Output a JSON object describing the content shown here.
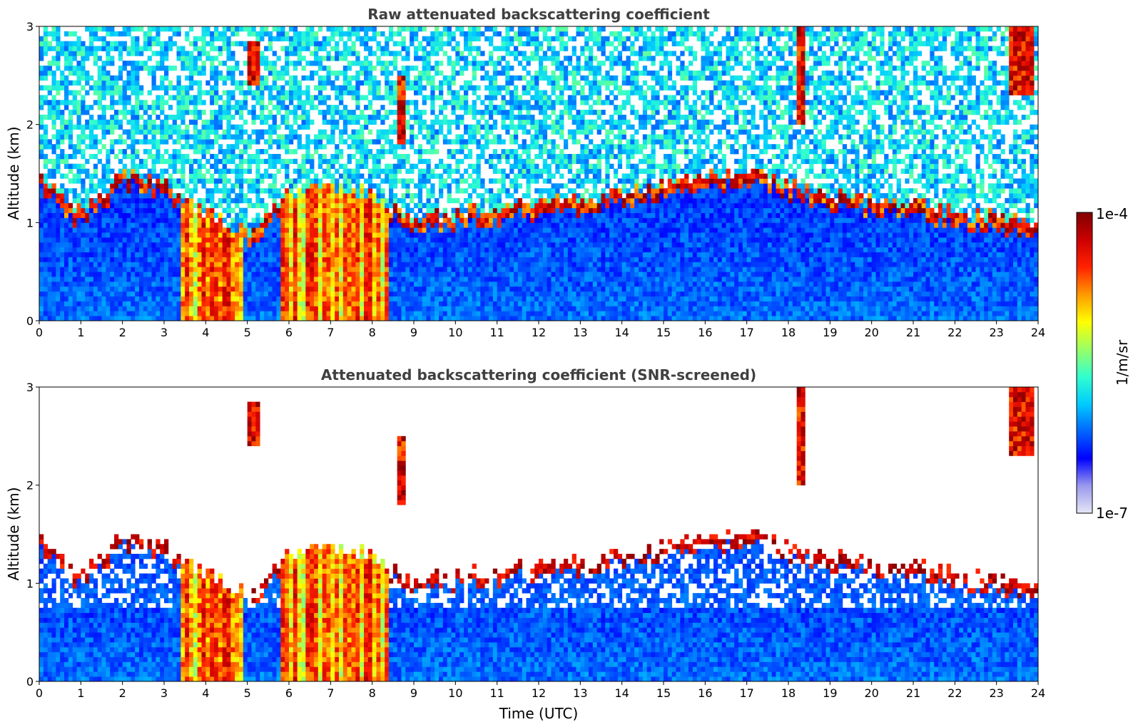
{
  "chart_data": [
    {
      "type": "heatmap",
      "title": "Raw attenuated backscattering coefficient",
      "xlabel": "",
      "ylabel": "Altitude (km)",
      "xlim": [
        0,
        24
      ],
      "ylim": [
        0,
        3
      ],
      "xticks": [
        "0",
        "1",
        "2",
        "3",
        "4",
        "5",
        "6",
        "7",
        "8",
        "9",
        "10",
        "11",
        "12",
        "13",
        "14",
        "15",
        "16",
        "17",
        "18",
        "19",
        "20",
        "21",
        "22",
        "23",
        "24"
      ],
      "yticks": [
        "0",
        "1",
        "2",
        "3"
      ],
      "screened": false
    },
    {
      "type": "heatmap",
      "title": "Attenuated backscattering coefficient (SNR-screened)",
      "xlabel": "Time (UTC)",
      "ylabel": "Altitude (km)",
      "xlim": [
        0,
        24
      ],
      "ylim": [
        0,
        3
      ],
      "xticks": [
        "0",
        "1",
        "2",
        "3",
        "4",
        "5",
        "6",
        "7",
        "8",
        "9",
        "10",
        "11",
        "12",
        "13",
        "14",
        "15",
        "16",
        "17",
        "18",
        "19",
        "20",
        "21",
        "22",
        "23",
        "24"
      ],
      "yticks": [
        "0",
        "1",
        "2",
        "3"
      ],
      "screened": true
    }
  ],
  "colorbar": {
    "label": "1/m/sr",
    "max_label": "1e-4",
    "min_label": "1e-7",
    "scale": "log",
    "colormap": "jet",
    "colors": [
      "#e6e6f5",
      "#9999ee",
      "#0000ff",
      "#0066ff",
      "#00ccff",
      "#33ffcc",
      "#99ff66",
      "#ffff00",
      "#ff9900",
      "#ff2200",
      "#cc0000",
      "#800000"
    ]
  },
  "features": {
    "boundary_layer_top_km": [
      {
        "t": 0,
        "h": 1.5
      },
      {
        "t": 1,
        "h": 1.1
      },
      {
        "t": 2,
        "h": 1.5
      },
      {
        "t": 3,
        "h": 1.4
      },
      {
        "t": 4,
        "h": 1.1
      },
      {
        "t": 5,
        "h": 0.9
      },
      {
        "t": 6,
        "h": 1.3
      },
      {
        "t": 7,
        "h": 1.4
      },
      {
        "t": 8,
        "h": 1.3
      },
      {
        "t": 9,
        "h": 1.0
      },
      {
        "t": 10,
        "h": 1.1
      },
      {
        "t": 11,
        "h": 1.15
      },
      {
        "t": 12,
        "h": 1.2
      },
      {
        "t": 13,
        "h": 1.25
      },
      {
        "t": 14,
        "h": 1.3
      },
      {
        "t": 15,
        "h": 1.4
      },
      {
        "t": 16,
        "h": 1.45
      },
      {
        "t": 17,
        "h": 1.5
      },
      {
        "t": 18,
        "h": 1.4
      },
      {
        "t": 19,
        "h": 1.3
      },
      {
        "t": 20,
        "h": 1.2
      },
      {
        "t": 21,
        "h": 1.2
      },
      {
        "t": 22,
        "h": 1.1
      },
      {
        "t": 23,
        "h": 1.05
      },
      {
        "t": 24,
        "h": 1.0
      }
    ],
    "dense_aerosol_periods_utc": [
      [
        3.4,
        4.9
      ],
      [
        5.85,
        8.4
      ]
    ],
    "elevated_layers": [
      {
        "t0": 5.05,
        "t1": 5.25,
        "h0": 2.4,
        "h1": 2.85
      },
      {
        "t0": 8.6,
        "t1": 8.8,
        "h0": 1.8,
        "h1": 2.5
      },
      {
        "t0": 18.2,
        "t1": 18.45,
        "h0": 2.0,
        "h1": 3.0
      },
      {
        "t0": 23.3,
        "t1": 23.9,
        "h0": 2.3,
        "h1": 3.0
      }
    ]
  }
}
